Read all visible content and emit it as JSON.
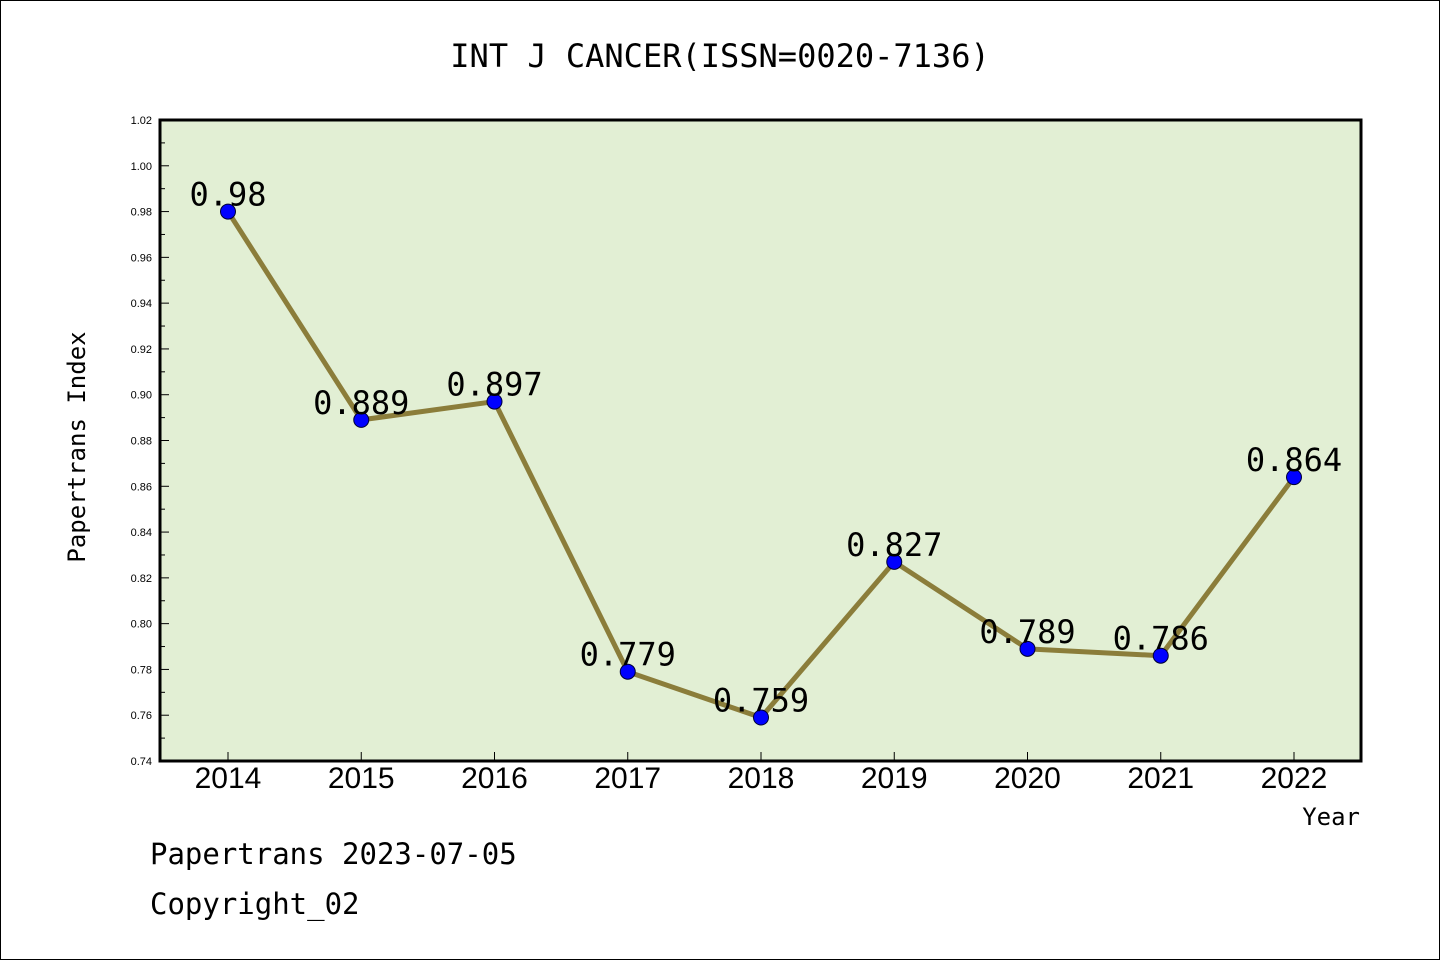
{
  "chart_data": {
    "type": "line",
    "title": "INT J CANCER(ISSN=0020-7136)",
    "xlabel": "Year",
    "ylabel": "Papertrans Index",
    "categories": [
      "2014",
      "2015",
      "2016",
      "2017",
      "2018",
      "2019",
      "2020",
      "2021",
      "2022"
    ],
    "values": [
      0.98,
      0.889,
      0.897,
      0.779,
      0.759,
      0.827,
      0.789,
      0.786,
      0.864
    ],
    "data_labels": [
      "0.98",
      "0.889",
      "0.897",
      "0.779",
      "0.759",
      "0.827",
      "0.789",
      "0.786",
      "0.864"
    ],
    "ylim": [
      0.74,
      1.02
    ],
    "yticks": [
      "0.74",
      "0.76",
      "0.78",
      "0.80",
      "0.82",
      "0.84",
      "0.86",
      "0.88",
      "0.90",
      "0.92",
      "0.94",
      "0.96",
      "0.98",
      "1.00",
      "1.02"
    ],
    "grid": false,
    "legend": "none",
    "colors": {
      "plot_background": "#e2efd4",
      "line": "#8b7d3a",
      "marker": "#0000ff"
    }
  },
  "footer": {
    "line1": "Papertrans 2023-07-05",
    "line2": "Copyright_02"
  }
}
